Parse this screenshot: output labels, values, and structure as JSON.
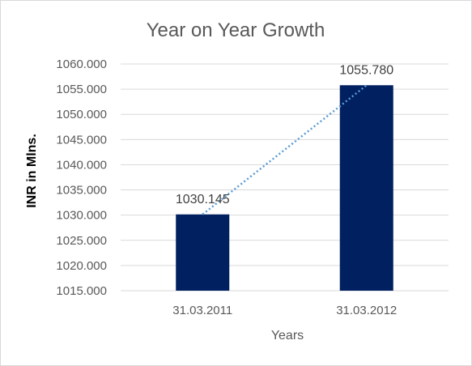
{
  "chart_data": {
    "type": "bar",
    "title": "Year on Year Growth",
    "xlabel": "Years",
    "ylabel": "INR in Mlns.",
    "categories": [
      "31.03.2011",
      "31.03.2012"
    ],
    "values": [
      1030.145,
      1055.78
    ],
    "data_labels": [
      "1030.145",
      "1055.780"
    ],
    "ylim": [
      1015,
      1060
    ],
    "y_ticks": [
      "1015.000",
      "1020.000",
      "1025.000",
      "1030.000",
      "1035.000",
      "1040.000",
      "1045.000",
      "1050.000",
      "1055.000",
      "1060.000"
    ],
    "y_tick_values": [
      1015,
      1020,
      1025,
      1030,
      1035,
      1040,
      1045,
      1050,
      1055,
      1060
    ],
    "grid": true,
    "legend": "none",
    "trendline": "linear-dotted",
    "colors": {
      "bar": "#002060",
      "trendline": "#5b9bd5",
      "grid": "#d9d9d9"
    }
  }
}
